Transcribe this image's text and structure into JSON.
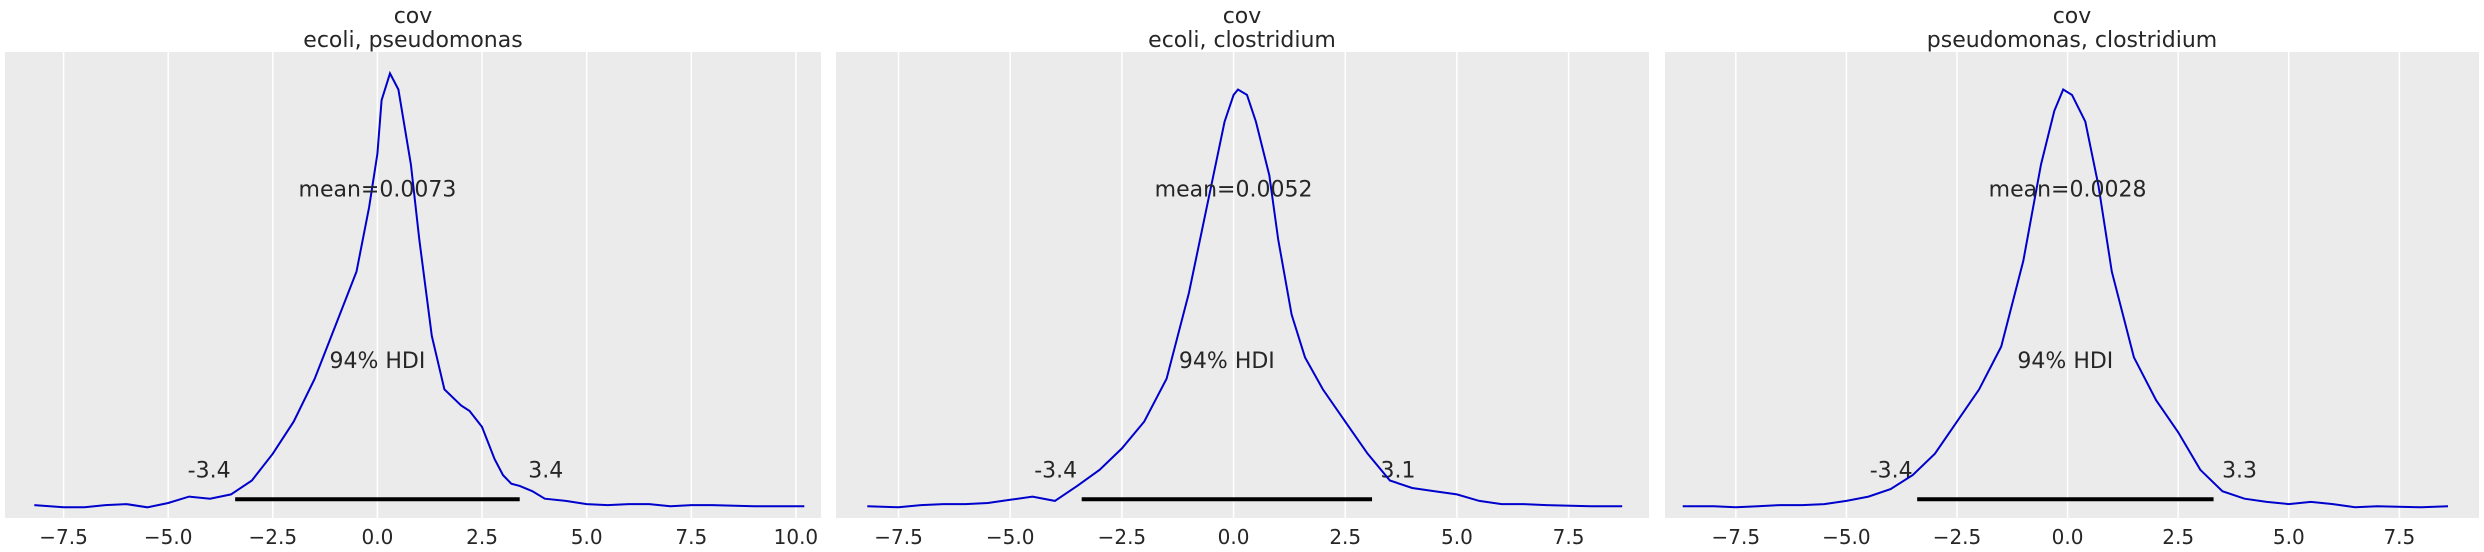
{
  "chart_data": [
    {
      "type": "line",
      "title": "cov",
      "subtitle": "ecoli, pseudomonas",
      "mean_label": "mean=0.0073",
      "hdi_label": "94% HDI",
      "hdi": [
        -3.4,
        3.4
      ],
      "hdi_low_label": "-3.4",
      "hdi_high_label": "3.4",
      "xlim": [
        -8.9,
        10.6
      ],
      "ylim": [
        -0.01,
        0.425
      ],
      "xticks": [
        -7.5,
        -5.0,
        -2.5,
        0.0,
        2.5,
        5.0,
        7.5,
        10.0
      ],
      "xtick_labels": [
        "−7.5",
        "−5.0",
        "−2.5",
        "0.0",
        "2.5",
        "5.0",
        "7.5",
        "10.0"
      ],
      "grid": true,
      "line_color": "#0000cc",
      "x": [
        -8.2,
        -7.5,
        -7.0,
        -6.5,
        -6.0,
        -5.5,
        -5.0,
        -4.5,
        -4.0,
        -3.5,
        -3.0,
        -2.5,
        -2.0,
        -1.5,
        -1.0,
        -0.5,
        -0.2,
        0.0,
        0.1,
        0.3,
        0.5,
        0.8,
        1.0,
        1.3,
        1.6,
        2.0,
        2.2,
        2.5,
        2.8,
        3.0,
        3.2,
        3.4,
        3.7,
        4.0,
        4.5,
        5.0,
        5.5,
        6.0,
        6.5,
        7.0,
        7.5,
        8.0,
        9.0,
        10.2
      ],
      "y": [
        0.002,
        0.0,
        0.0,
        0.002,
        0.003,
        0.0,
        0.004,
        0.01,
        0.008,
        0.012,
        0.025,
        0.05,
        0.08,
        0.12,
        0.17,
        0.22,
        0.28,
        0.33,
        0.38,
        0.405,
        0.39,
        0.32,
        0.25,
        0.16,
        0.11,
        0.095,
        0.09,
        0.075,
        0.045,
        0.03,
        0.022,
        0.02,
        0.015,
        0.008,
        0.006,
        0.003,
        0.002,
        0.003,
        0.003,
        0.001,
        0.002,
        0.002,
        0.001,
        0.001
      ]
    },
    {
      "type": "line",
      "title": "cov",
      "subtitle": "ecoli, clostridium",
      "mean_label": "mean=0.0052",
      "hdi_label": "94% HDI",
      "hdi": [
        -3.4,
        3.1
      ],
      "hdi_low_label": "-3.4",
      "hdi_high_label": "3.1",
      "xlim": [
        -8.9,
        9.3
      ],
      "ylim": [
        -0.01,
        0.425
      ],
      "xticks": [
        -7.5,
        -5.0,
        -2.5,
        0.0,
        2.5,
        5.0,
        7.5
      ],
      "xtick_labels": [
        "−7.5",
        "−5.0",
        "−2.5",
        "0.0",
        "2.5",
        "5.0",
        "7.5"
      ],
      "grid": true,
      "line_color": "#0000cc",
      "x": [
        -8.2,
        -7.5,
        -7.0,
        -6.5,
        -6.0,
        -5.5,
        -5.0,
        -4.5,
        -4.0,
        -3.5,
        -3.0,
        -2.5,
        -2.0,
        -1.5,
        -1.0,
        -0.5,
        -0.2,
        0.0,
        0.1,
        0.3,
        0.5,
        0.8,
        1.0,
        1.3,
        1.6,
        2.0,
        2.5,
        3.0,
        3.5,
        4.0,
        4.5,
        5.0,
        5.5,
        6.0,
        6.5,
        7.0,
        8.0,
        8.7
      ],
      "y": [
        0.001,
        0.0,
        0.002,
        0.003,
        0.003,
        0.004,
        0.007,
        0.01,
        0.006,
        0.02,
        0.035,
        0.055,
        0.08,
        0.12,
        0.2,
        0.3,
        0.36,
        0.385,
        0.39,
        0.385,
        0.36,
        0.31,
        0.25,
        0.18,
        0.14,
        0.11,
        0.08,
        0.05,
        0.025,
        0.018,
        0.015,
        0.012,
        0.006,
        0.003,
        0.003,
        0.002,
        0.001,
        0.001
      ]
    },
    {
      "type": "line",
      "title": "cov",
      "subtitle": "pseudomonas, clostridium",
      "mean_label": "mean=0.0028",
      "hdi_label": "94% HDI",
      "hdi": [
        -3.4,
        3.3
      ],
      "hdi_low_label": "-3.4",
      "hdi_high_label": "3.3",
      "xlim": [
        -9.1,
        9.3
      ],
      "ylim": [
        -0.01,
        0.425
      ],
      "xticks": [
        -7.5,
        -5.0,
        -2.5,
        0.0,
        2.5,
        5.0,
        7.5
      ],
      "xtick_labels": [
        "−7.5",
        "−5.0",
        "−2.5",
        "0.0",
        "2.5",
        "5.0",
        "7.5"
      ],
      "grid": true,
      "line_color": "#0000cc",
      "x": [
        -8.7,
        -8.0,
        -7.5,
        -7.0,
        -6.5,
        -6.0,
        -5.5,
        -5.0,
        -4.5,
        -4.0,
        -3.5,
        -3.0,
        -2.5,
        -2.0,
        -1.5,
        -1.0,
        -0.6,
        -0.3,
        -0.1,
        0.1,
        0.4,
        0.7,
        1.0,
        1.5,
        2.0,
        2.5,
        3.0,
        3.5,
        4.0,
        4.5,
        5.0,
        5.5,
        6.0,
        6.5,
        7.0,
        8.0,
        8.6
      ],
      "y": [
        0.001,
        0.001,
        0.0,
        0.001,
        0.002,
        0.002,
        0.003,
        0.006,
        0.01,
        0.017,
        0.03,
        0.05,
        0.08,
        0.11,
        0.15,
        0.23,
        0.32,
        0.37,
        0.39,
        0.385,
        0.36,
        0.3,
        0.22,
        0.14,
        0.1,
        0.07,
        0.035,
        0.015,
        0.008,
        0.005,
        0.003,
        0.005,
        0.003,
        0.0,
        0.001,
        0.0,
        0.001
      ]
    }
  ]
}
